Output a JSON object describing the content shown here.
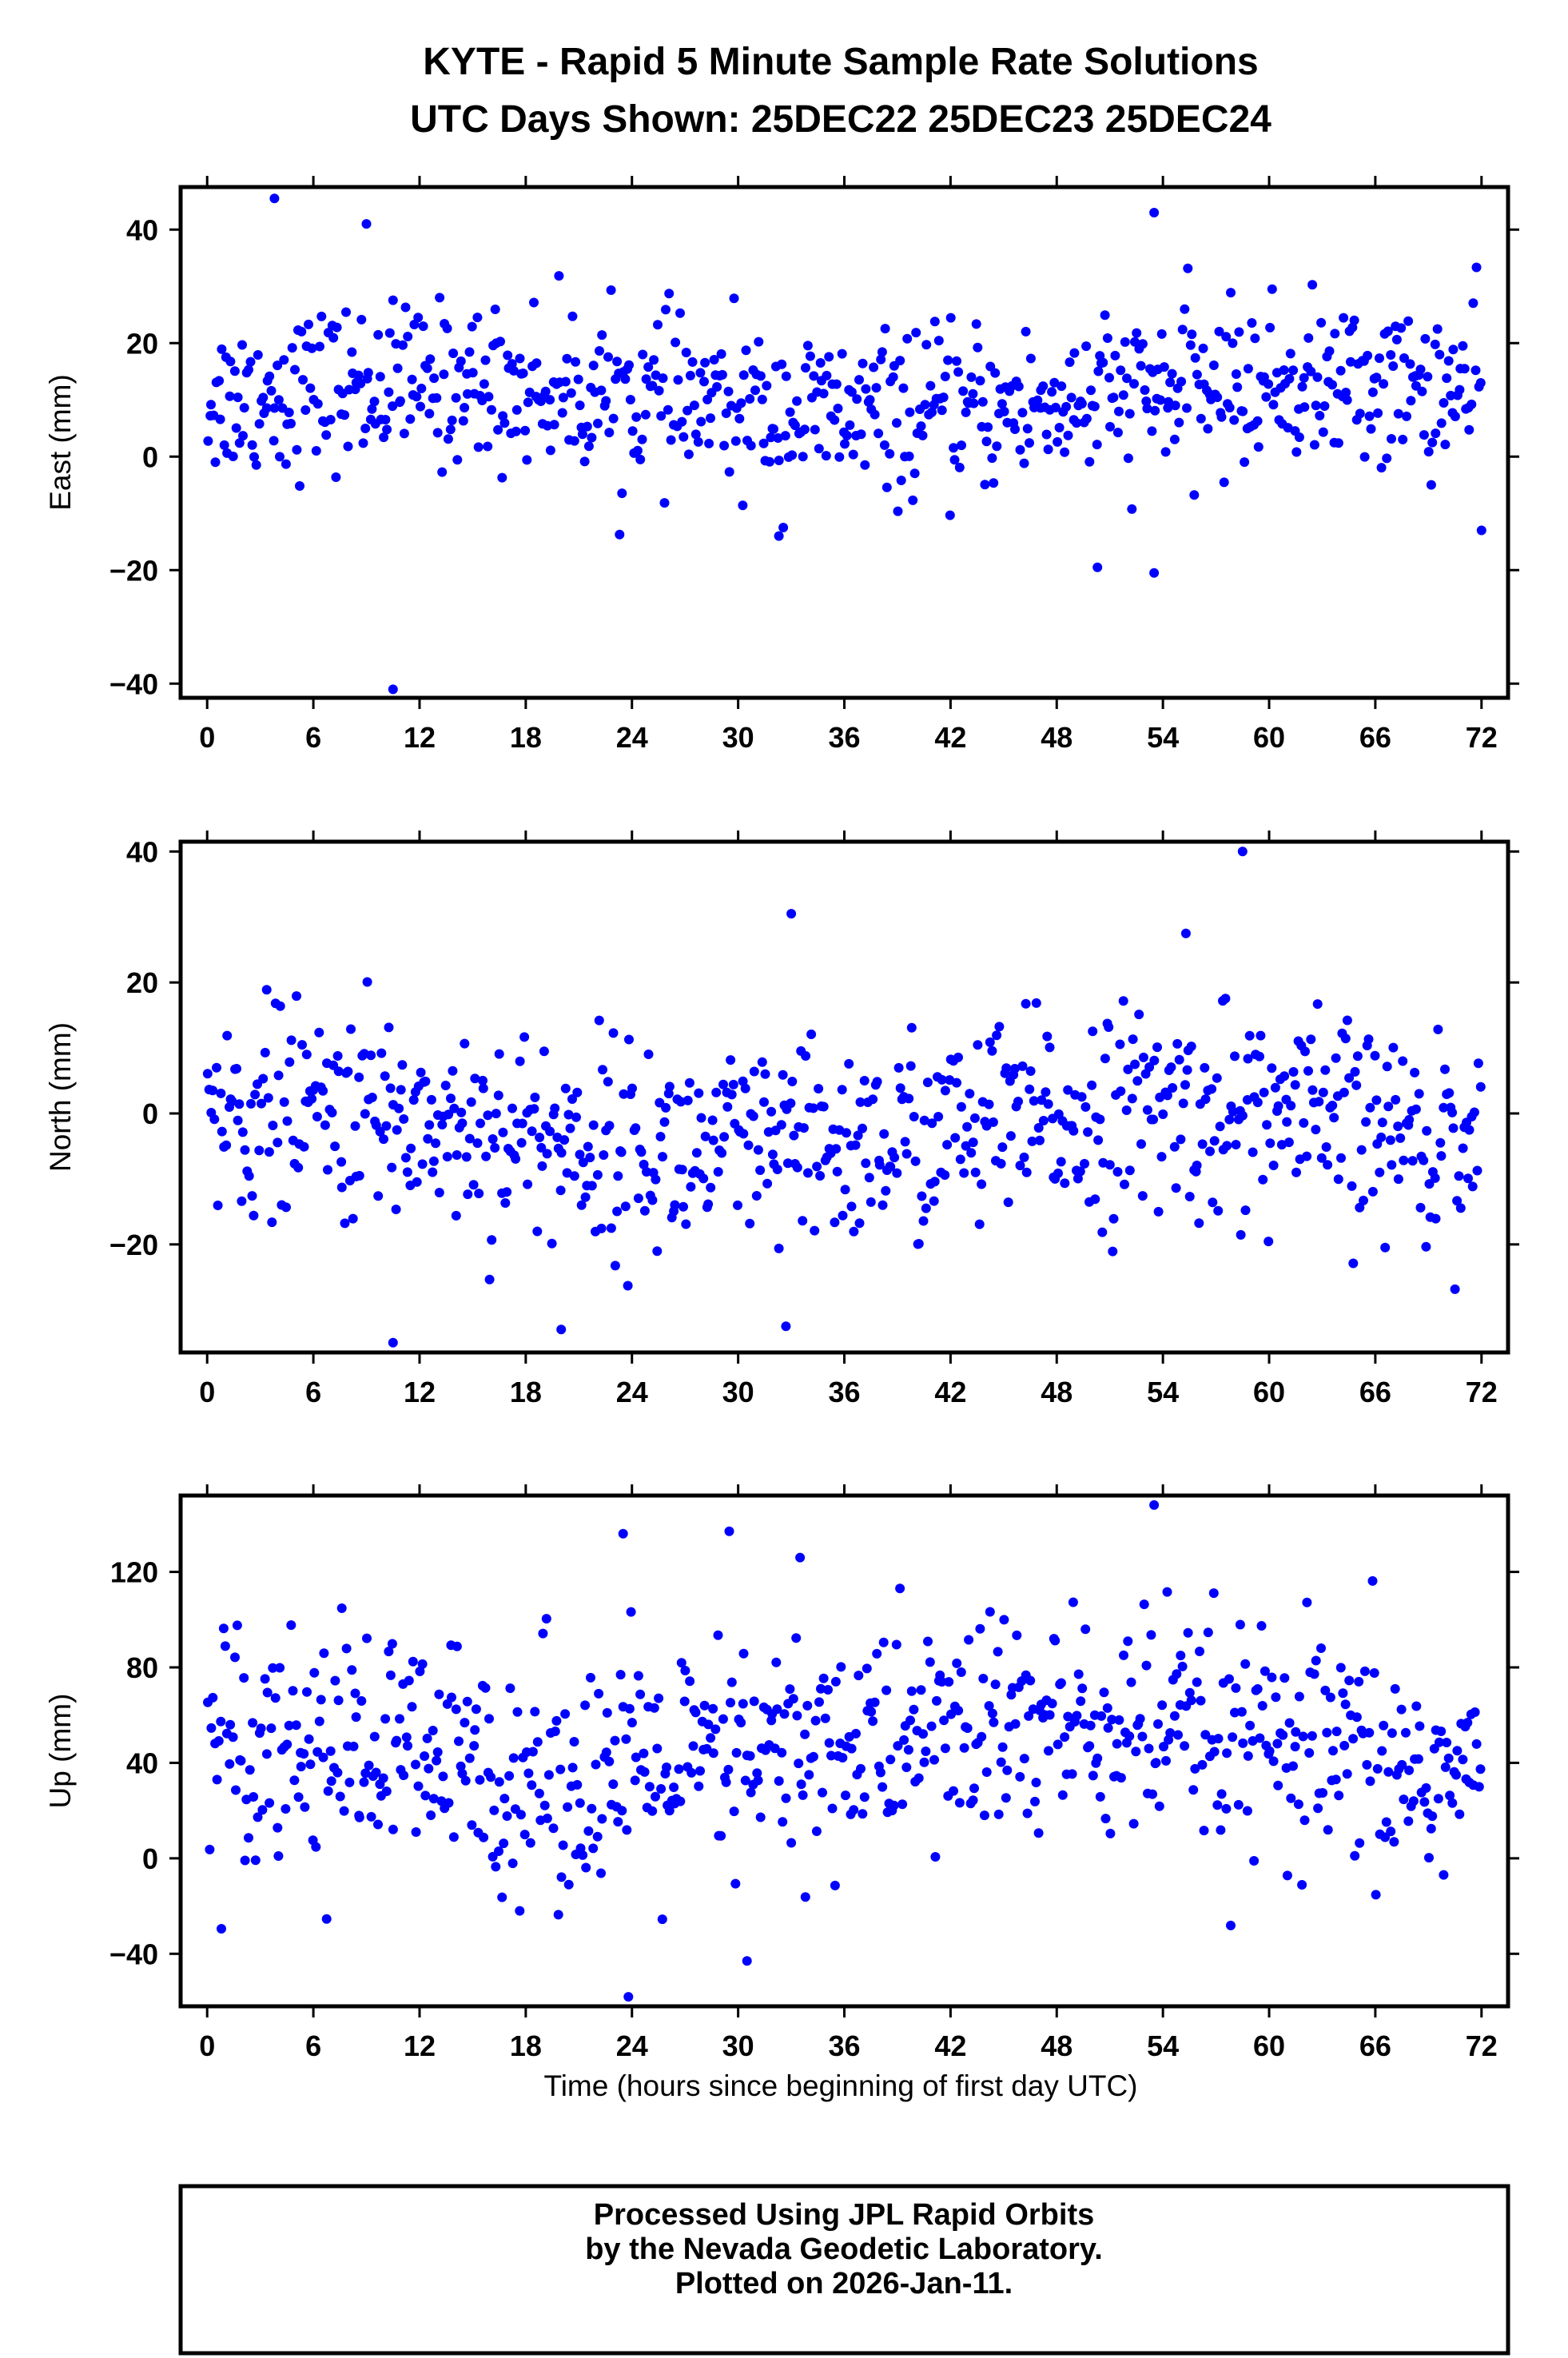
{
  "title_line1": "KYTE - Rapid 5 Minute Sample Rate Solutions",
  "title_line2": "UTC Days Shown:  25DEC22 25DEC23 25DEC24",
  "xlabel": "Time (hours since beginning of first day UTC)",
  "footer": {
    "line1": "Processed Using JPL Rapid Orbits",
    "line2": "by the Nevada Geodetic Laboratory.",
    "line3": "Plotted on 2026-Jan-11."
  },
  "colors": {
    "points": "#0000ff",
    "axes": "#000000"
  },
  "chart_data": [
    {
      "type": "scatter",
      "ylabel": "East (mm)",
      "xlim": [
        -1.5,
        73.5
      ],
      "ylim": [
        -42.5,
        47.5
      ],
      "xticks": [
        0,
        6,
        12,
        18,
        24,
        30,
        36,
        42,
        48,
        54,
        60,
        66,
        72
      ],
      "yticks": [
        -40,
        -20,
        0,
        20,
        40
      ],
      "grid": false,
      "series_stats": {
        "mean": 10,
        "spread": 7
      },
      "notable_points": [
        {
          "x": 3.8,
          "y": 45.5
        },
        {
          "x": 9.0,
          "y": 41
        },
        {
          "x": 10.5,
          "y": -41
        },
        {
          "x": 53.5,
          "y": 43
        },
        {
          "x": 53.5,
          "y": -20.5
        },
        {
          "x": 50.3,
          "y": -19.5
        },
        {
          "x": 32.3,
          "y": -14
        },
        {
          "x": 72.0,
          "y": -13
        }
      ]
    },
    {
      "type": "scatter",
      "ylabel": "North (mm)",
      "xlim": [
        -1.5,
        73.5
      ],
      "ylim": [
        -36.5,
        41.5
      ],
      "xticks": [
        0,
        6,
        12,
        18,
        24,
        30,
        36,
        42,
        48,
        54,
        60,
        66,
        72
      ],
      "yticks": [
        -20,
        0,
        20,
        40
      ],
      "grid": false,
      "series_stats": {
        "mean": -3,
        "spread": 8
      },
      "notable_points": [
        {
          "x": 58.5,
          "y": 40
        },
        {
          "x": 33.0,
          "y": 30.5
        },
        {
          "x": 55.3,
          "y": 27.5
        },
        {
          "x": 10.5,
          "y": -35
        },
        {
          "x": 20.0,
          "y": -33
        },
        {
          "x": 32.7,
          "y": -32.5
        }
      ]
    },
    {
      "type": "scatter",
      "ylabel": "Up (mm)",
      "xlim": [
        -1.5,
        73.5
      ],
      "ylim": [
        -62,
        152
      ],
      "xticks": [
        0,
        6,
        12,
        18,
        24,
        30,
        36,
        42,
        48,
        54,
        60,
        66,
        72
      ],
      "yticks": [
        -40,
        0,
        40,
        80,
        120
      ],
      "grid": false,
      "series_stats": {
        "mean": 45,
        "spread": 25
      },
      "notable_points": [
        {
          "x": 53.5,
          "y": 148
        },
        {
          "x": 23.8,
          "y": -58
        },
        {
          "x": 29.5,
          "y": 137
        },
        {
          "x": 23.5,
          "y": 136
        },
        {
          "x": 33.5,
          "y": 126
        },
        {
          "x": 30.5,
          "y": -43
        }
      ]
    }
  ]
}
